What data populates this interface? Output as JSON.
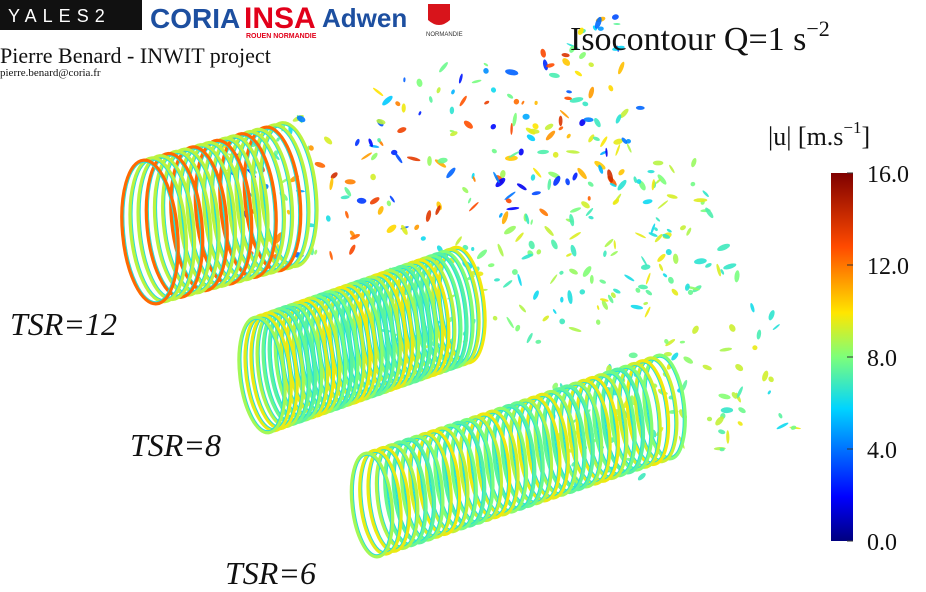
{
  "header": {
    "logos": [
      "YALES2",
      "CORIA",
      "INSA",
      "ROUEN NORMANDIE",
      "Adwen",
      "NORMANDIE"
    ],
    "author": "Pierre Benard - INWIT project",
    "email": "pierre.benard@coria.fr"
  },
  "title": {
    "text": "Isocontour Q=1 s",
    "superscript": "−2"
  },
  "colorbar": {
    "label": {
      "text": "|u| [m.s",
      "superscript": "−1",
      "close": "]"
    },
    "lim": [
      0,
      16
    ],
    "ticks": [
      {
        "value": 0,
        "label": "0.0"
      },
      {
        "value": 4,
        "label": "4.0"
      },
      {
        "value": 8,
        "label": "8.0"
      },
      {
        "value": 12,
        "label": "12.0"
      },
      {
        "value": 16,
        "label": "16.0"
      }
    ]
  },
  "cases": [
    {
      "label": "TSR=12"
    },
    {
      "label": "TSR=8"
    },
    {
      "label": "TSR=6"
    }
  ]
}
